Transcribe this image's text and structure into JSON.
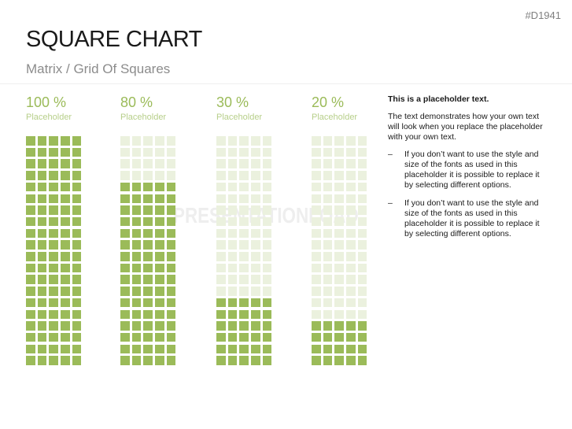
{
  "doc_code": "#D1941",
  "title": "SQUARE CHART",
  "subtitle": "Matrix / Grid Of Squares",
  "watermark": "PRESENTATIONLOAD",
  "colors": {
    "filled": "#9bbb59",
    "empty": "#ebf1de"
  },
  "grid": {
    "columns": 5,
    "rows": 20
  },
  "charts": [
    {
      "percent_label": "100 %",
      "label": "Placeholder",
      "value": 100
    },
    {
      "percent_label": "80 %",
      "label": "Placeholder",
      "value": 80
    },
    {
      "percent_label": "30 %",
      "label": "Placeholder",
      "value": 30
    },
    {
      "percent_label": "20 %",
      "label": "Placeholder",
      "value": 20
    }
  ],
  "text": {
    "heading": "This is a placeholder text.",
    "body": "The text demonstrates how your own text will look when you replace the placeholder with your own text.",
    "bullets": [
      "If you don’t want to use the style and size of the fonts as used in this placeholder it is possible to replace it by selecting different options.",
      "If you don’t want to use the style and size of the fonts as used in this placeholder it is possible to replace it by selecting different options."
    ],
    "bullet_marker": "–"
  }
}
